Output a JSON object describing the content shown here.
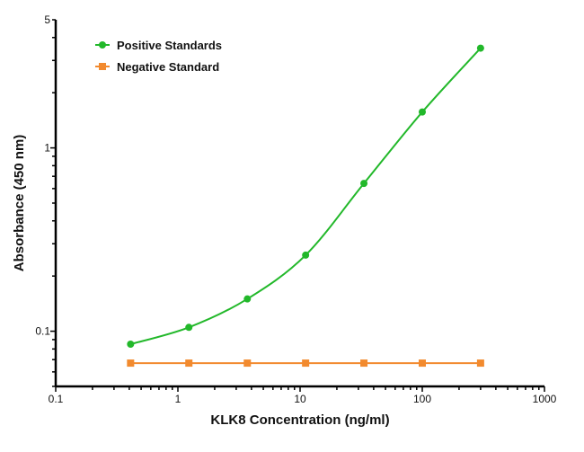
{
  "chart_data": {
    "type": "line",
    "xlabel": "KLK8 Concentration (ng/ml)",
    "ylabel": "Absorbance (450 nm)",
    "xscale": "log",
    "yscale": "log",
    "xlim": [
      0.1,
      1000
    ],
    "ylim": [
      0.05,
      5
    ],
    "xticks": [
      0.1,
      1,
      10,
      100,
      1000
    ],
    "xtick_labels": [
      "0.1",
      "1",
      "10",
      "100",
      "1000"
    ],
    "yticks": [
      0.1,
      1,
      5
    ],
    "ytick_labels": [
      "0.1",
      "1",
      "5"
    ],
    "grid": false,
    "legend_position": "top-left",
    "series": [
      {
        "name": "Positive Standards",
        "color": "#22b82a",
        "marker": "circle",
        "fit": "smooth curve",
        "x": [
          0.41,
          1.23,
          3.7,
          11.1,
          33.3,
          100,
          300
        ],
        "y": [
          0.085,
          0.105,
          0.15,
          0.26,
          0.64,
          1.57,
          3.5
        ]
      },
      {
        "name": "Negative Standard",
        "color": "#f28a2e",
        "marker": "square",
        "fit": "straight line",
        "x": [
          0.41,
          1.23,
          3.7,
          11.1,
          33.3,
          100,
          300
        ],
        "y": [
          0.067,
          0.067,
          0.067,
          0.067,
          0.067,
          0.067,
          0.067
        ]
      }
    ]
  }
}
